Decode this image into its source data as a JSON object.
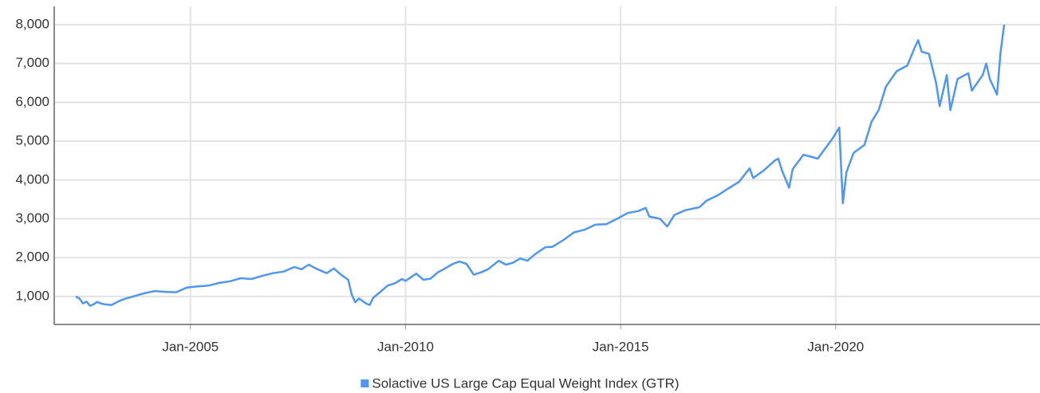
{
  "chart_data": {
    "type": "line",
    "x": [
      "May-2002",
      "Jun-2002",
      "Jul-2002",
      "Aug-2002",
      "Sep-2002",
      "Oct-2002",
      "Nov-2002",
      "Dec-2002",
      "Jan-2003",
      "Mar-2003",
      "May-2003",
      "Jul-2003",
      "Sep-2003",
      "Dec-2003",
      "Mar-2004",
      "Jun-2004",
      "Sep-2004",
      "Dec-2004",
      "Mar-2005",
      "Jun-2005",
      "Sep-2005",
      "Dec-2005",
      "Mar-2006",
      "Jun-2006",
      "Sep-2006",
      "Dec-2006",
      "Mar-2007",
      "Jun-2007",
      "Aug-2007",
      "Oct-2007",
      "Dec-2007",
      "Mar-2008",
      "May-2008",
      "Jul-2008",
      "Sep-2008",
      "Oct-2008",
      "Nov-2008",
      "Dec-2008",
      "Feb-2009",
      "Mar-2009",
      "Apr-2009",
      "Jun-2009",
      "Aug-2009",
      "Oct-2009",
      "Dec-2009",
      "Jan-2010",
      "Apr-2010",
      "Jun-2010",
      "Aug-2010",
      "Oct-2010",
      "Dec-2010",
      "Feb-2011",
      "Apr-2011",
      "Jun-2011",
      "Aug-2011",
      "Oct-2011",
      "Dec-2011",
      "Mar-2012",
      "May-2012",
      "Jul-2012",
      "Sep-2012",
      "Nov-2012",
      "Jan-2013",
      "Apr-2013",
      "Jun-2013",
      "Sep-2013",
      "Dec-2013",
      "Mar-2014",
      "Jun-2014",
      "Sep-2014",
      "Dec-2014",
      "Mar-2015",
      "Jun-2015",
      "Aug-2015",
      "Sep-2015",
      "Dec-2015",
      "Feb-2016",
      "Apr-2016",
      "Jul-2016",
      "Nov-2016",
      "Jan-2017",
      "Apr-2017",
      "Jul-2017",
      "Oct-2017",
      "Jan-2018",
      "Feb-2018",
      "May-2018",
      "Aug-2018",
      "Sep-2018",
      "Oct-2018",
      "Dec-2018",
      "Jan-2019",
      "Apr-2019",
      "Jun-2019",
      "Aug-2019",
      "Oct-2019",
      "Dec-2019",
      "Feb-2020",
      "Mar-2020",
      "Apr-2020",
      "Jun-2020",
      "Sep-2020",
      "Nov-2020",
      "Jan-2021",
      "Mar-2021",
      "Jun-2021",
      "Sep-2021",
      "Nov-2021",
      "Dec-2021",
      "Jan-2022",
      "Mar-2022",
      "May-2022",
      "Jun-2022",
      "Aug-2022",
      "Sep-2022",
      "Nov-2022",
      "Feb-2023",
      "Mar-2023",
      "Jun-2023",
      "Jul-2023",
      "Aug-2023",
      "Oct-2023",
      "Nov-2023",
      "Dec-2023"
    ],
    "series": [
      {
        "name": "Solactive US Large Cap Equal Weight Index (GTR)",
        "color": "#4f97f0",
        "values": [
          1000,
          950,
          820,
          870,
          760,
          800,
          860,
          820,
          800,
          780,
          880,
          950,
          1000,
          1080,
          1140,
          1120,
          1110,
          1230,
          1260,
          1280,
          1350,
          1390,
          1470,
          1450,
          1530,
          1600,
          1640,
          1760,
          1700,
          1820,
          1720,
          1600,
          1720,
          1560,
          1430,
          1050,
          850,
          950,
          820,
          780,
          970,
          1120,
          1280,
          1340,
          1450,
          1400,
          1590,
          1430,
          1460,
          1620,
          1720,
          1830,
          1900,
          1840,
          1560,
          1620,
          1700,
          1920,
          1820,
          1870,
          1980,
          1920,
          2080,
          2270,
          2280,
          2450,
          2650,
          2720,
          2850,
          2860,
          3000,
          3150,
          3200,
          3280,
          3060,
          3000,
          2800,
          3100,
          3220,
          3300,
          3470,
          3600,
          3780,
          3950,
          4300,
          4050,
          4250,
          4500,
          4550,
          4250,
          3800,
          4280,
          4650,
          4600,
          4550,
          4800,
          5050,
          5350,
          3400,
          4200,
          4700,
          4900,
          5500,
          5800,
          6400,
          6800,
          6950,
          7400,
          7600,
          7300,
          7250,
          6500,
          5900,
          6700,
          5800,
          6600,
          6750,
          6300,
          6700,
          7000,
          6600,
          6200,
          7300,
          8000
        ]
      }
    ],
    "xlim": [
      "Nov-2001",
      "Oct-2024"
    ],
    "xticks": [
      "Jan-2005",
      "Jan-2010",
      "Jan-2015",
      "Jan-2020"
    ],
    "ylim": [
      280,
      8470
    ],
    "yticks": [
      {
        "value": 1000,
        "label": "1,000"
      },
      {
        "value": 2000,
        "label": "2,000"
      },
      {
        "value": 3000,
        "label": "3,000"
      },
      {
        "value": 4000,
        "label": "4,000"
      },
      {
        "value": 5000,
        "label": "5,000"
      },
      {
        "value": 6000,
        "label": "6,000"
      },
      {
        "value": 7000,
        "label": "7,000"
      },
      {
        "value": 8000,
        "label": "8,000"
      }
    ],
    "grid": true,
    "legend": "bottom"
  }
}
